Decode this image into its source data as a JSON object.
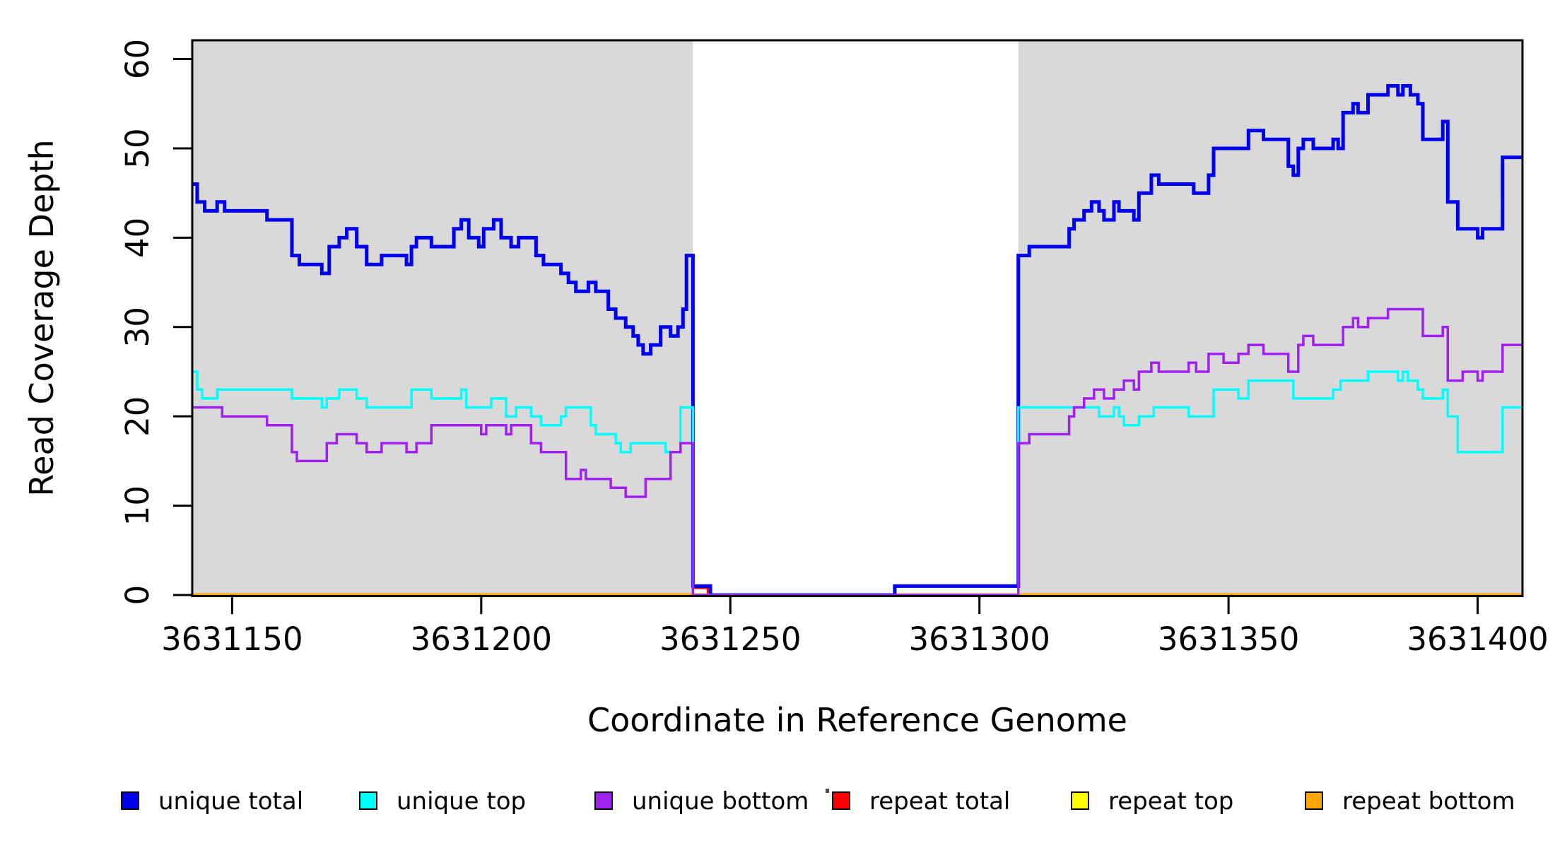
{
  "chart_data": {
    "type": "line",
    "subtype": "step-coverage",
    "title": "",
    "xlabel": "Coordinate in Reference Genome",
    "ylabel": "Read Coverage Depth",
    "xlim": [
      3631142,
      3631409
    ],
    "ylim": [
      0,
      62
    ],
    "x_ticks": [
      3631150,
      3631200,
      3631250,
      3631300,
      3631350,
      3631400
    ],
    "y_ticks": [
      0,
      10,
      20,
      30,
      40,
      50,
      60
    ],
    "grid": false,
    "legend_position": "bottom",
    "background_color": "#ffffff",
    "shaded_regions": {
      "color": "#d9d9d9",
      "ranges": [
        [
          3631142,
          3631242.5
        ],
        [
          3631307.8,
          3631409
        ]
      ]
    },
    "series": [
      {
        "name": "unique total",
        "color": "#0000ee",
        "width": 5,
        "steps": [
          [
            3631142,
            46
          ],
          [
            3631143,
            44
          ],
          [
            3631144.5,
            43
          ],
          [
            3631147,
            44
          ],
          [
            3631148.5,
            43
          ],
          [
            3631157,
            42
          ],
          [
            3631162,
            38
          ],
          [
            3631163.5,
            37
          ],
          [
            3631168,
            36
          ],
          [
            3631169.5,
            39
          ],
          [
            3631171.5,
            40
          ],
          [
            3631173,
            41
          ],
          [
            3631175,
            39
          ],
          [
            3631177,
            37
          ],
          [
            3631180,
            38
          ],
          [
            3631185,
            37
          ],
          [
            3631186,
            39
          ],
          [
            3631187,
            40
          ],
          [
            3631190,
            39
          ],
          [
            3631194.5,
            41
          ],
          [
            3631196,
            42
          ],
          [
            3631197.5,
            40
          ],
          [
            3631199.5,
            39
          ],
          [
            3631200.5,
            41
          ],
          [
            3631202.5,
            42
          ],
          [
            3631204,
            40
          ],
          [
            3631206,
            39
          ],
          [
            3631207.5,
            40
          ],
          [
            3631211,
            38
          ],
          [
            3631212.5,
            37
          ],
          [
            3631216,
            36
          ],
          [
            3631217.5,
            35
          ],
          [
            3631219,
            34
          ],
          [
            3631221.5,
            35
          ],
          [
            3631223,
            34
          ],
          [
            3631225.5,
            32
          ],
          [
            3631227,
            31
          ],
          [
            3631229,
            30
          ],
          [
            3631230.5,
            29
          ],
          [
            3631231.5,
            28
          ],
          [
            3631232.5,
            27
          ],
          [
            3631234,
            28
          ],
          [
            3631236,
            30
          ],
          [
            3631238,
            29
          ],
          [
            3631239.5,
            30
          ],
          [
            3631240.5,
            32
          ],
          [
            3631241.2,
            38
          ],
          [
            3631242.5,
            1
          ],
          [
            3631246,
            0
          ],
          [
            3631283,
            1
          ],
          [
            3631307.8,
            38
          ],
          [
            3631310,
            39
          ],
          [
            3631318,
            41
          ],
          [
            3631319,
            42
          ],
          [
            3631321,
            43
          ],
          [
            3631322.5,
            44
          ],
          [
            3631324,
            43
          ],
          [
            3631325,
            42
          ],
          [
            3631327,
            44
          ],
          [
            3631328,
            43
          ],
          [
            3631331,
            42
          ],
          [
            3631332,
            45
          ],
          [
            3631334.5,
            47
          ],
          [
            3631336,
            46
          ],
          [
            3631343,
            45
          ],
          [
            3631346,
            47
          ],
          [
            3631347,
            50
          ],
          [
            3631354,
            52
          ],
          [
            3631357,
            51
          ],
          [
            3631362,
            48
          ],
          [
            3631363,
            47
          ],
          [
            3631364,
            50
          ],
          [
            3631365,
            51
          ],
          [
            3631367,
            50
          ],
          [
            3631371,
            51
          ],
          [
            3631372,
            50
          ],
          [
            3631373,
            54
          ],
          [
            3631375,
            55
          ],
          [
            3631376,
            54
          ],
          [
            3631378,
            56
          ],
          [
            3631382,
            57
          ],
          [
            3631384,
            56
          ],
          [
            3631385,
            57
          ],
          [
            3631386.5,
            56
          ],
          [
            3631388,
            55
          ],
          [
            3631389,
            51
          ],
          [
            3631393,
            53
          ],
          [
            3631394,
            44
          ],
          [
            3631396,
            41
          ],
          [
            3631400,
            40
          ],
          [
            3631401,
            41
          ],
          [
            3631405,
            49
          ],
          [
            3631409,
            49
          ]
        ]
      },
      {
        "name": "unique top",
        "color": "#00ffff",
        "width": 3.5,
        "steps": [
          [
            3631142,
            25
          ],
          [
            3631143,
            23
          ],
          [
            3631144,
            22
          ],
          [
            3631147,
            23
          ],
          [
            3631162,
            22
          ],
          [
            3631168,
            21
          ],
          [
            3631169,
            22
          ],
          [
            3631171.5,
            23
          ],
          [
            3631175,
            22
          ],
          [
            3631177,
            21
          ],
          [
            3631186,
            23
          ],
          [
            3631190,
            22
          ],
          [
            3631196,
            23
          ],
          [
            3631197,
            21
          ],
          [
            3631202,
            22
          ],
          [
            3631205,
            20
          ],
          [
            3631207,
            21
          ],
          [
            3631210,
            20
          ],
          [
            3631212,
            19
          ],
          [
            3631216,
            20
          ],
          [
            3631217,
            21
          ],
          [
            3631222,
            19
          ],
          [
            3631223,
            18
          ],
          [
            3631227,
            17
          ],
          [
            3631228,
            16
          ],
          [
            3631230,
            17
          ],
          [
            3631237,
            16
          ],
          [
            3631240,
            21
          ],
          [
            3631242.5,
            0
          ],
          [
            3631307.8,
            21
          ],
          [
            3631324,
            20
          ],
          [
            3631327,
            21
          ],
          [
            3631328,
            20
          ],
          [
            3631329,
            19
          ],
          [
            3631332,
            20
          ],
          [
            3631335,
            21
          ],
          [
            3631342,
            20
          ],
          [
            3631347,
            23
          ],
          [
            3631352,
            22
          ],
          [
            3631354,
            24
          ],
          [
            3631363,
            22
          ],
          [
            3631371,
            23
          ],
          [
            3631372.5,
            24
          ],
          [
            3631378,
            25
          ],
          [
            3631384,
            24
          ],
          [
            3631385,
            25
          ],
          [
            3631386,
            24
          ],
          [
            3631388,
            23
          ],
          [
            3631389,
            22
          ],
          [
            3631393,
            23
          ],
          [
            3631394,
            20
          ],
          [
            3631396,
            16
          ],
          [
            3631405,
            21
          ],
          [
            3631409,
            21
          ]
        ]
      },
      {
        "name": "unique bottom",
        "color": "#a020f0",
        "width": 3.5,
        "steps": [
          [
            3631142,
            21
          ],
          [
            3631148,
            20
          ],
          [
            3631157,
            19
          ],
          [
            3631162,
            16
          ],
          [
            3631163,
            15
          ],
          [
            3631169,
            17
          ],
          [
            3631171,
            18
          ],
          [
            3631175,
            17
          ],
          [
            3631177,
            16
          ],
          [
            3631180,
            17
          ],
          [
            3631185,
            16
          ],
          [
            3631187,
            17
          ],
          [
            3631190,
            19
          ],
          [
            3631200,
            18
          ],
          [
            3631201,
            19
          ],
          [
            3631205,
            18
          ],
          [
            3631206,
            19
          ],
          [
            3631210,
            17
          ],
          [
            3631212,
            16
          ],
          [
            3631217,
            13
          ],
          [
            3631220,
            14
          ],
          [
            3631221,
            13
          ],
          [
            3631226,
            12
          ],
          [
            3631229,
            11
          ],
          [
            3631233,
            13
          ],
          [
            3631238,
            16
          ],
          [
            3631240,
            17
          ],
          [
            3631242.5,
            0
          ],
          [
            3631307.8,
            17
          ],
          [
            3631310,
            18
          ],
          [
            3631318,
            20
          ],
          [
            3631319,
            21
          ],
          [
            3631321,
            22
          ],
          [
            3631323,
            23
          ],
          [
            3631325,
            22
          ],
          [
            3631327,
            23
          ],
          [
            3631329,
            24
          ],
          [
            3631331,
            23
          ],
          [
            3631332,
            25
          ],
          [
            3631334.5,
            26
          ],
          [
            3631336,
            25
          ],
          [
            3631342,
            26
          ],
          [
            3631343.5,
            25
          ],
          [
            3631346,
            27
          ],
          [
            3631349,
            26
          ],
          [
            3631352,
            27
          ],
          [
            3631354,
            28
          ],
          [
            3631357,
            27
          ],
          [
            3631362,
            25
          ],
          [
            3631364,
            28
          ],
          [
            3631365,
            29
          ],
          [
            3631367,
            28
          ],
          [
            3631373,
            30
          ],
          [
            3631375,
            31
          ],
          [
            3631376,
            30
          ],
          [
            3631378,
            31
          ],
          [
            3631382,
            32
          ],
          [
            3631389,
            29
          ],
          [
            3631393,
            30
          ],
          [
            3631394,
            24
          ],
          [
            3631397,
            25
          ],
          [
            3631400,
            24
          ],
          [
            3631401,
            25
          ],
          [
            3631405,
            28
          ],
          [
            3631409,
            28
          ]
        ]
      },
      {
        "name": "repeat total",
        "color": "#ff0000",
        "width": 3.5,
        "steps": [
          [
            3631142,
            0
          ],
          [
            3631242.5,
            0.8
          ],
          [
            3631245.5,
            0
          ],
          [
            3631409,
            0
          ]
        ]
      },
      {
        "name": "repeat top",
        "color": "#ffff00",
        "width": 3.5,
        "steps": [
          [
            3631142,
            0
          ],
          [
            3631409,
            0
          ]
        ]
      },
      {
        "name": "repeat bottom",
        "color": "#ffa500",
        "width": 5,
        "steps": [
          [
            3631142,
            0
          ],
          [
            3631409,
            0
          ]
        ]
      }
    ]
  },
  "legend": {
    "items": [
      {
        "label": "unique total",
        "color": "#0000ee"
      },
      {
        "label": "unique top",
        "color": "#00ffff"
      },
      {
        "label": "unique bottom",
        "color": "#a020f0"
      },
      {
        "label": "repeat total",
        "color": "#ff0000"
      },
      {
        "label": "repeat top",
        "color": "#ffff00"
      },
      {
        "label": "repeat bottom",
        "color": "#ffa500"
      }
    ]
  }
}
